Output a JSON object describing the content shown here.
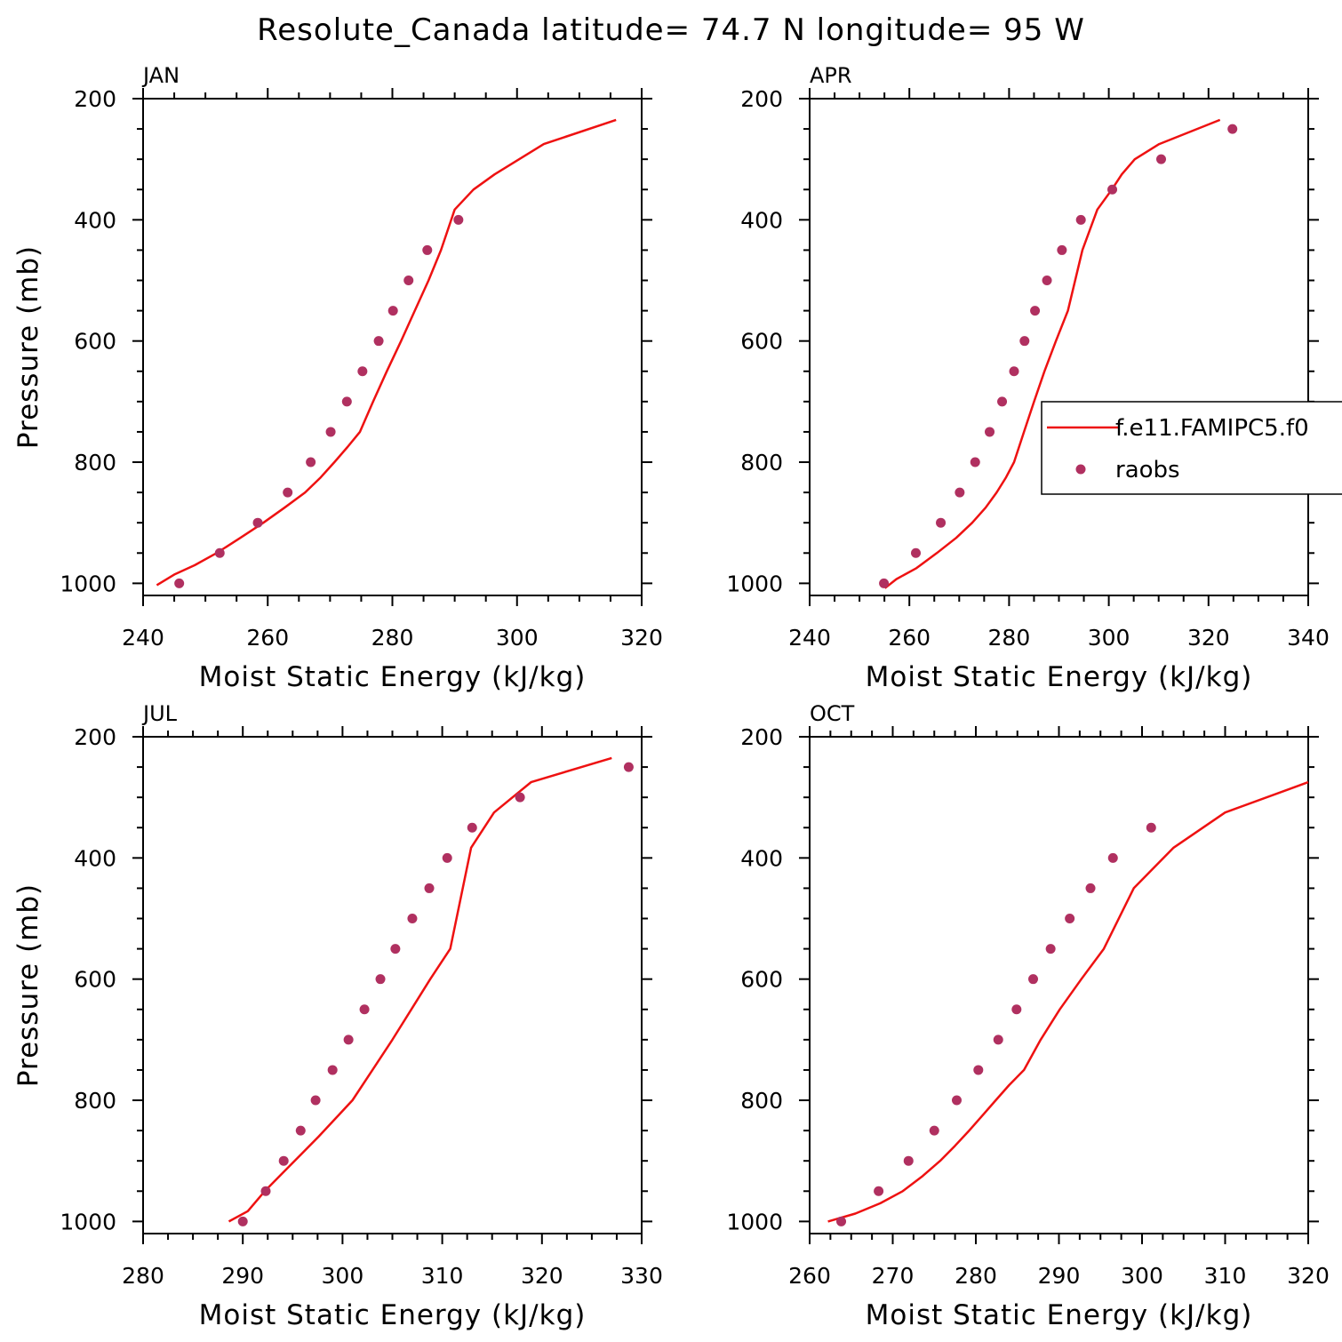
{
  "title": "Resolute_Canada  latitude= 74.7 N longitude= 95 W",
  "colors": {
    "model": "#ee1111",
    "obs": "#b03060",
    "axes": "#000000"
  },
  "legend": {
    "model_label": "f.e11.FAMIPC5.f0",
    "obs_label": "raobs"
  },
  "chart_data": [
    {
      "type": "line",
      "panel": "JAN",
      "xlabel": "Moist Static Energy (kJ/kg)",
      "ylabel": "Pressure (mb)",
      "xlim": [
        240,
        320
      ],
      "ylim": [
        1020,
        200
      ],
      "xticks": [
        240,
        260,
        280,
        300,
        320
      ],
      "yticks": [
        200,
        400,
        600,
        800,
        1000
      ],
      "series": [
        {
          "name": "f.e11.FAMIPC5.f0",
          "kind": "line",
          "x": [
            242.2,
            245.1,
            248.3,
            251.8,
            255.6,
            259.3,
            262.7,
            266.0,
            268.5,
            270.7,
            272.8,
            274.8,
            276.9,
            279.1,
            281.4,
            283.6,
            285.8,
            287.8,
            290.0,
            293.0,
            296.4,
            304.3,
            315.9
          ],
          "y": [
            1003,
            985,
            970,
            950,
            925,
            900,
            875,
            850,
            825,
            800,
            775,
            750,
            700,
            650,
            600,
            550,
            500,
            450,
            383,
            350,
            325,
            275,
            235
          ]
        },
        {
          "name": "raobs",
          "kind": "scatter",
          "x": [
            245.8,
            252.3,
            258.4,
            263.2,
            266.9,
            270.1,
            272.7,
            275.2,
            277.8,
            280.1,
            282.6,
            285.6,
            290.6
          ],
          "y": [
            1000,
            950,
            900,
            850,
            800,
            750,
            700,
            650,
            600,
            550,
            500,
            450,
            400
          ]
        }
      ]
    },
    {
      "type": "line",
      "panel": "APR",
      "xlabel": "Moist Static Energy (kJ/kg)",
      "ylabel": "Pressure (mb)",
      "xlim": [
        240,
        340
      ],
      "ylim": [
        1020,
        200
      ],
      "xticks": [
        240,
        260,
        280,
        300,
        320,
        340
      ],
      "yticks": [
        200,
        400,
        600,
        800,
        1000
      ],
      "series": [
        {
          "name": "f.e11.FAMIPC5.f0",
          "kind": "line",
          "x": [
            255.1,
            257.4,
            261.4,
            265.5,
            269.4,
            272.6,
            275.3,
            277.5,
            279.4,
            281.0,
            283.0,
            285.0,
            287.1,
            289.4,
            291.8,
            294.7,
            297.7,
            300.6,
            302.6,
            305.2,
            310.1,
            322.3
          ],
          "y": [
            1008,
            993,
            975,
            950,
            925,
            900,
            875,
            850,
            825,
            800,
            750,
            700,
            650,
            600,
            550,
            450,
            383,
            350,
            325,
            300,
            275,
            235
          ]
        },
        {
          "name": "raobs",
          "kind": "scatter",
          "x": [
            254.9,
            261.3,
            266.3,
            270.1,
            273.2,
            276.1,
            278.6,
            281.0,
            283.1,
            285.2,
            287.6,
            290.6,
            294.4,
            300.7,
            310.5,
            324.8
          ],
          "y": [
            1000,
            950,
            900,
            850,
            800,
            750,
            700,
            650,
            600,
            550,
            500,
            450,
            400,
            350,
            300,
            250
          ]
        }
      ]
    },
    {
      "type": "line",
      "panel": "JUL",
      "xlabel": "Moist Static Energy (kJ/kg)",
      "ylabel": "Pressure (mb)",
      "xlim": [
        280,
        330
      ],
      "ylim": [
        1020,
        200
      ],
      "xticks": [
        280,
        290,
        300,
        310,
        320,
        330
      ],
      "yticks": [
        200,
        400,
        600,
        800,
        1000
      ],
      "series": [
        {
          "name": "f.e11.FAMIPC5.f0",
          "kind": "line",
          "x": [
            288.6,
            290.5,
            292.2,
            294.0,
            295.8,
            297.6,
            299.3,
            301.0,
            303.0,
            305.0,
            306.9,
            308.8,
            310.8,
            312.9,
            315.2,
            318.9,
            327.0
          ],
          "y": [
            1000,
            983,
            950,
            920,
            890,
            860,
            830,
            800,
            750,
            700,
            650,
            600,
            550,
            383,
            325,
            275,
            235
          ]
        },
        {
          "name": "raobs",
          "kind": "scatter",
          "x": [
            290.0,
            292.3,
            294.1,
            295.8,
            297.3,
            299.0,
            300.6,
            302.2,
            303.8,
            305.3,
            307.0,
            308.7,
            310.5,
            313.0,
            317.8,
            328.7
          ],
          "y": [
            1000,
            950,
            900,
            850,
            800,
            750,
            700,
            650,
            600,
            550,
            500,
            450,
            400,
            350,
            300,
            250
          ]
        }
      ]
    },
    {
      "type": "line",
      "panel": "OCT",
      "xlabel": "Moist Static Energy (kJ/kg)",
      "ylabel": "Pressure (mb)",
      "xlim": [
        260,
        320
      ],
      "ylim": [
        1020,
        200
      ],
      "xticks": [
        260,
        270,
        280,
        290,
        300,
        310,
        320
      ],
      "yticks": [
        200,
        400,
        600,
        800,
        1000
      ],
      "series": [
        {
          "name": "f.e11.FAMIPC5.f0",
          "kind": "line",
          "x": [
            262.2,
            265.5,
            268.5,
            271.2,
            273.6,
            275.7,
            277.5,
            279.2,
            280.8,
            282.4,
            284.0,
            285.8,
            287.8,
            290.1,
            292.7,
            295.4,
            299.0,
            303.8,
            310.0,
            320.0
          ],
          "y": [
            1000,
            987,
            970,
            950,
            925,
            900,
            875,
            850,
            825,
            800,
            775,
            750,
            700,
            650,
            600,
            550,
            450,
            383,
            325,
            275
          ]
        },
        {
          "name": "raobs",
          "kind": "scatter",
          "x": [
            263.8,
            268.3,
            271.9,
            275.0,
            277.7,
            280.3,
            282.7,
            284.9,
            286.9,
            289.0,
            291.3,
            293.8,
            296.5,
            301.1
          ],
          "y": [
            1000,
            950,
            900,
            850,
            800,
            750,
            700,
            650,
            600,
            550,
            500,
            450,
            400,
            350
          ]
        }
      ]
    }
  ]
}
